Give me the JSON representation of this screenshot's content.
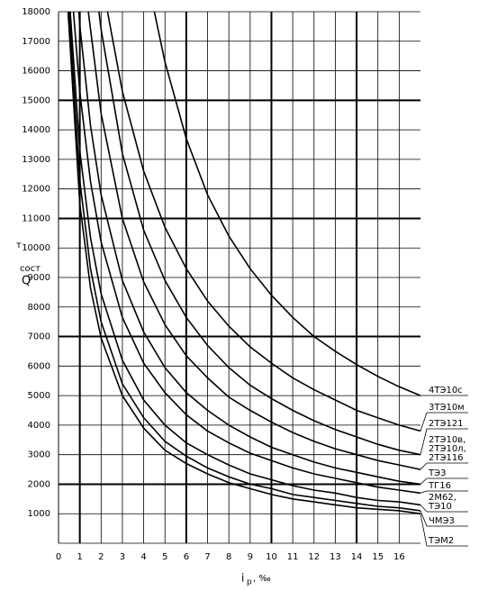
{
  "chart_data": {
    "type": "line",
    "ylabel": {
      "symbol": "Q",
      "subscript": "сост",
      "unit": "т"
    },
    "xlabel": {
      "symbol": "i",
      "subscript": "р",
      "unit": ", ‰"
    },
    "xlim": [
      0,
      17
    ],
    "ylim": [
      0,
      18000
    ],
    "xticks": [
      0,
      1,
      2,
      3,
      4,
      5,
      6,
      7,
      8,
      9,
      10,
      11,
      12,
      13,
      14,
      15,
      16
    ],
    "yticks": [
      1000,
      2000,
      3000,
      4000,
      5000,
      6000,
      7000,
      8000,
      9000,
      10000,
      11000,
      12000,
      13000,
      14000,
      15000,
      16000,
      17000,
      18000
    ],
    "major_xgrid": [
      1,
      6,
      10,
      14
    ],
    "major_ygrid": [
      2000,
      7000,
      11000,
      15000
    ],
    "grid": true,
    "series": [
      {
        "name": "4ТЭ10с",
        "color": "#000000",
        "x": [
          4.5,
          5,
          6,
          7,
          8,
          9,
          10,
          11,
          12,
          13,
          14,
          15,
          16,
          17
        ],
        "values": [
          18000,
          16300,
          13700,
          11800,
          10400,
          9300,
          8400,
          7650,
          7000,
          6500,
          6050,
          5650,
          5300,
          5000
        ]
      },
      {
        "name": "3ТЭ10м",
        "color": "#000000",
        "x": [
          2.3,
          3,
          4,
          5,
          6,
          7,
          8,
          9,
          10,
          11,
          12,
          13,
          14,
          15,
          16,
          17
        ],
        "values": [
          18000,
          15300,
          12600,
          10700,
          9300,
          8200,
          7350,
          6650,
          6100,
          5600,
          5200,
          4850,
          4500,
          4250,
          4000,
          3800
        ]
      },
      {
        "name": "2ТЭ121",
        "color": "#000000",
        "x": [
          1.9,
          2,
          3,
          4,
          5,
          6,
          7,
          8,
          9,
          10,
          11,
          12,
          13,
          14,
          15,
          16,
          17
        ],
        "values": [
          18000,
          17400,
          13200,
          10600,
          8900,
          7650,
          6700,
          5950,
          5350,
          4900,
          4500,
          4150,
          3850,
          3600,
          3350,
          3150,
          3000
        ]
      },
      {
        "name": "2ТЭ10в, 2ТЭ10л, 2ТЭ116",
        "color": "#000000",
        "x": [
          1.4,
          2,
          3,
          4,
          5,
          6,
          7,
          8,
          9,
          10,
          11,
          12,
          13,
          14,
          15,
          16,
          17
        ],
        "values": [
          18000,
          14550,
          11000,
          8850,
          7400,
          6350,
          5600,
          4950,
          4500,
          4100,
          3750,
          3450,
          3200,
          3000,
          2800,
          2650,
          2500
        ]
      },
      {
        "name": "ТЭ3",
        "color": "#000000",
        "x": [
          0.95,
          1,
          1.5,
          2,
          3,
          4,
          5,
          6,
          7,
          8,
          9,
          10,
          11,
          12,
          13,
          14,
          15,
          16,
          17
        ],
        "values": [
          18000,
          17550,
          14150,
          11800,
          8900,
          7150,
          5950,
          5100,
          4500,
          4000,
          3600,
          3250,
          3000,
          2750,
          2550,
          2400,
          2250,
          2100,
          2000
        ]
      },
      {
        "name": "ТГ16",
        "color": "#000000",
        "x": [
          0.7,
          1,
          1.5,
          2,
          3,
          4,
          5,
          6,
          7,
          8,
          9,
          10,
          11,
          12,
          13,
          14,
          15,
          16,
          17
        ],
        "values": [
          18000,
          15300,
          12250,
          10200,
          7650,
          6100,
          5100,
          4350,
          3800,
          3400,
          3050,
          2800,
          2550,
          2350,
          2200,
          2050,
          1900,
          1800,
          1700
        ]
      },
      {
        "name": "2М62, ТЭ10",
        "color": "#000000",
        "x": [
          0.55,
          1,
          1.5,
          2,
          3,
          4,
          5,
          6,
          7,
          8,
          9,
          10,
          11,
          12,
          13,
          14,
          15,
          16,
          17
        ],
        "values": [
          18000,
          13300,
          10350,
          8450,
          6200,
          4850,
          4000,
          3400,
          3000,
          2650,
          2350,
          2150,
          1950,
          1800,
          1700,
          1550,
          1450,
          1400,
          1300
        ]
      },
      {
        "name": "ЧМЭ3",
        "color": "#000000",
        "x": [
          0.5,
          1,
          1.5,
          2,
          3,
          4,
          5,
          6,
          7,
          8,
          9,
          10,
          11,
          12,
          13,
          14,
          15,
          16,
          17
        ],
        "values": [
          18000,
          12300,
          9300,
          7500,
          5400,
          4250,
          3450,
          2950,
          2550,
          2250,
          2000,
          1850,
          1650,
          1550,
          1450,
          1350,
          1250,
          1200,
          1100
        ]
      },
      {
        "name": "ТЭМ2",
        "color": "#000000",
        "x": [
          0.45,
          1,
          1.5,
          2,
          3,
          4,
          5,
          6,
          7,
          8,
          9,
          10,
          11,
          12,
          13,
          14,
          15,
          16,
          17
        ],
        "values": [
          18000,
          11500,
          8650,
          6950,
          5000,
          3900,
          3150,
          2700,
          2350,
          2050,
          1850,
          1650,
          1500,
          1400,
          1300,
          1200,
          1150,
          1100,
          1000
        ]
      }
    ]
  }
}
